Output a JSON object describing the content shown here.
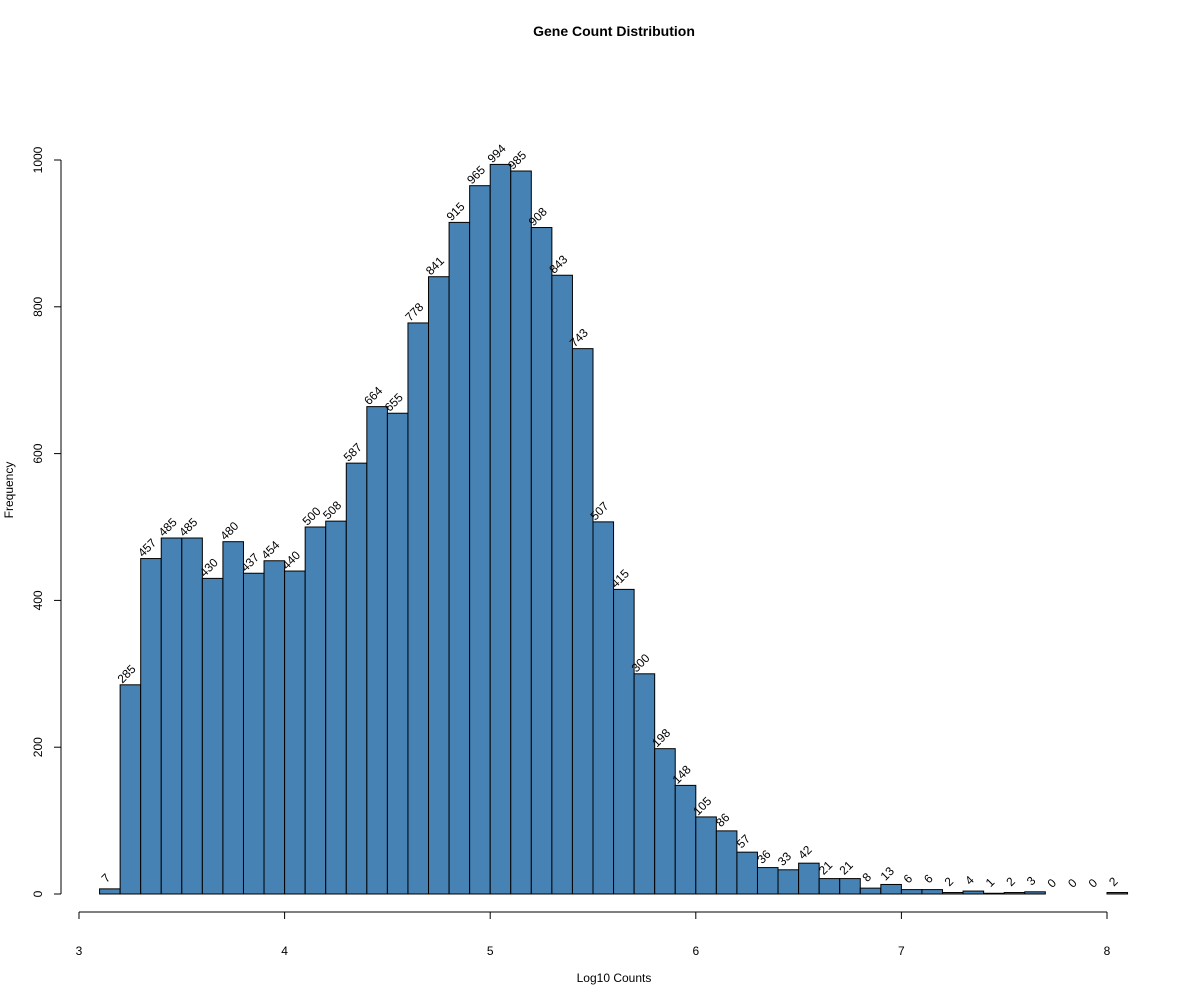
{
  "chart_data": {
    "type": "bar",
    "title": "Gene Count Distribution",
    "xlabel": "Log10 Counts",
    "ylabel": "Frequency",
    "x_ticks": [
      3,
      4,
      5,
      6,
      7,
      8
    ],
    "y_ticks": [
      0,
      200,
      400,
      600,
      800,
      1000
    ],
    "xlim": [
      3,
      8.1
    ],
    "ylim": [
      0,
      1000
    ],
    "bin_width": 0.1,
    "bin_start": 3.1,
    "bar_color": "#4682B4",
    "edge_color": "#000000",
    "values": [
      7,
      285,
      457,
      485,
      485,
      430,
      480,
      437,
      454,
      440,
      500,
      508,
      587,
      664,
      655,
      778,
      841,
      915,
      965,
      994,
      985,
      908,
      843,
      743,
      507,
      415,
      300,
      198,
      148,
      105,
      86,
      57,
      36,
      33,
      42,
      21,
      21,
      8,
      13,
      6,
      6,
      2,
      4,
      1,
      2,
      3,
      0,
      0,
      0,
      2
    ],
    "labels": [
      "7",
      "285",
      "457",
      "485",
      "485",
      "430",
      "480",
      "437",
      "454",
      "440",
      "500",
      "508",
      "587",
      "664",
      "655",
      "778",
      "841",
      "915",
      "965",
      "994",
      "985",
      "908",
      "843",
      "743",
      "507",
      "415",
      "300",
      "198",
      "148",
      "105",
      "86",
      "57",
      "36",
      "33",
      "42",
      "21",
      "21",
      "8",
      "13",
      "6",
      "6",
      "2",
      "4",
      "1",
      "2",
      "3",
      "0",
      "0",
      "0",
      "2"
    ],
    "grid": false,
    "legend": "none"
  }
}
